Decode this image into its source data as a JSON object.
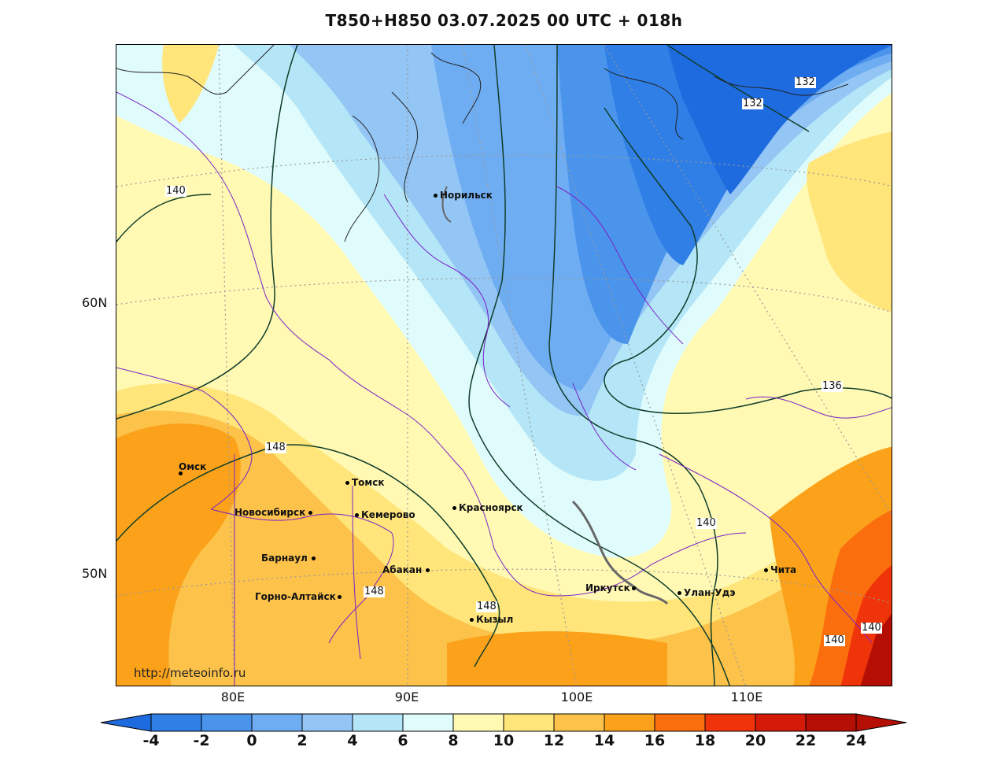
{
  "title": "T850+H850 03.07.2025 00 UTC + 018h",
  "watermark": "http://meteoinfo.ru",
  "latitude_labels": [
    "60N",
    "50N"
  ],
  "longitude_labels": [
    "80E",
    "90E",
    "100E",
    "110E"
  ],
  "cities": [
    {
      "name": "Норильск"
    },
    {
      "name": "Омск"
    },
    {
      "name": "Томск"
    },
    {
      "name": "Новосибирск"
    },
    {
      "name": "Кемерово"
    },
    {
      "name": "Красноярск"
    },
    {
      "name": "Барнаул"
    },
    {
      "name": "Абакан"
    },
    {
      "name": "Горно-Алтайск"
    },
    {
      "name": "Кызыл"
    },
    {
      "name": "Иркутск"
    },
    {
      "name": "Улан-Удэ"
    },
    {
      "name": "Чита"
    }
  ],
  "contour_labels": [
    "132",
    "132",
    "140",
    "136",
    "148",
    "140",
    "148",
    "148",
    "140",
    "140"
  ],
  "colorbar": {
    "labels": [
      "-4",
      "-2",
      "0",
      "2",
      "4",
      "6",
      "8",
      "10",
      "12",
      "14",
      "16",
      "18",
      "20",
      "22",
      "24"
    ],
    "colors": [
      "#1e6be0",
      "#2f7fe6",
      "#4a94ec",
      "#6fadf2",
      "#93c5f5",
      "#b4e6f7",
      "#e0fbfb",
      "#fff9b3",
      "#ffe57a",
      "#fcc24a",
      "#fba21a",
      "#fb6e0e",
      "#f0340a",
      "#d41a08",
      "#b40e05"
    ]
  }
}
